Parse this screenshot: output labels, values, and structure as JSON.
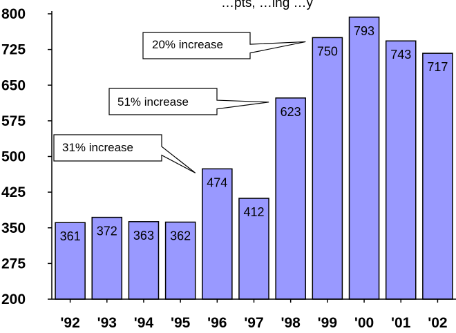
{
  "chart_data": {
    "type": "bar",
    "title": "",
    "partial_title": "…pts, …ing …y",
    "categories": [
      "'92",
      "'93",
      "'94",
      "'95",
      "'96",
      "'97",
      "'98",
      "'99",
      "'00",
      "'01",
      "'02"
    ],
    "values": [
      361,
      372,
      363,
      362,
      474,
      412,
      623,
      750,
      793,
      743,
      717
    ],
    "data_labels": [
      "361",
      "372",
      "363",
      "362",
      "474",
      "412",
      "623",
      "750",
      "793",
      "743",
      "717"
    ],
    "ylim": [
      200,
      800
    ],
    "yticks": [
      "200",
      "275",
      "350",
      "425",
      "500",
      "575",
      "650",
      "725",
      "800"
    ],
    "xlabel": "",
    "ylabel": "",
    "grid": false,
    "colors": {
      "bar_fill": "#9999ff",
      "bar_stroke": "#000000"
    },
    "annotations": [
      {
        "text": "31% increase",
        "target_category": "'96",
        "target_value": 474
      },
      {
        "text": "51% increase",
        "target_category": "'98",
        "target_value": 623
      },
      {
        "text": "20% increase",
        "target_category": "'99",
        "target_value": 750
      }
    ]
  }
}
